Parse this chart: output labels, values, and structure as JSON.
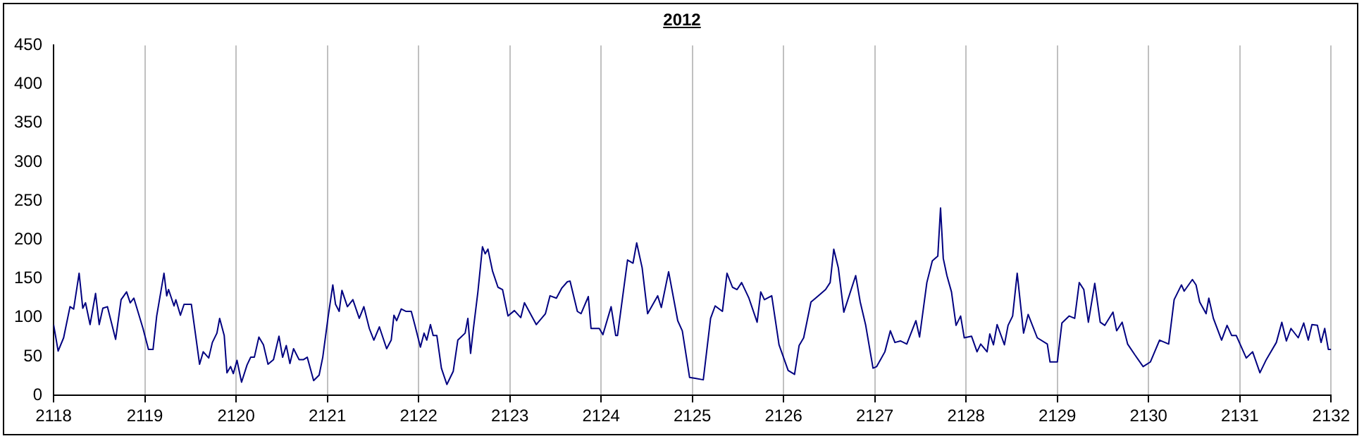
{
  "chart_data": {
    "type": "line",
    "title": "2012",
    "xlim": [
      2118,
      2132
    ],
    "xticks": [
      2118,
      2119,
      2120,
      2121,
      2122,
      2123,
      2124,
      2125,
      2126,
      2127,
      2128,
      2129,
      2130,
      2131,
      2132
    ],
    "ylim": [
      0,
      450
    ],
    "yticks": [
      0,
      50,
      100,
      150,
      200,
      250,
      300,
      350,
      400,
      450
    ],
    "grid": "x",
    "legend": false,
    "marker": "none",
    "line_style": "solid",
    "series": [
      {
        "color": "#000080",
        "x": [
          2118.0,
          2118.05,
          2118.11,
          2118.18,
          2118.22,
          2118.28,
          2118.32,
          2118.35,
          2118.4,
          2118.46,
          2118.5,
          2118.54,
          2118.59,
          2118.68,
          2118.74,
          2118.8,
          2118.84,
          2118.88,
          2118.98,
          2119.04,
          2119.09,
          2119.13,
          2119.21,
          2119.24,
          2119.26,
          2119.32,
          2119.34,
          2119.39,
          2119.43,
          2119.51,
          2119.55,
          2119.6,
          2119.64,
          2119.7,
          2119.74,
          2119.79,
          2119.82,
          2119.87,
          2119.9,
          2119.94,
          2119.97,
          2120.01,
          2120.06,
          2120.12,
          2120.16,
          2120.2,
          2120.25,
          2120.3,
          2120.35,
          2120.41,
          2120.47,
          2120.51,
          2120.55,
          2120.59,
          2120.63,
          2120.69,
          2120.74,
          2120.78,
          2120.85,
          2120.91,
          2120.95,
          2121.01,
          2121.06,
          2121.09,
          2121.13,
          2121.16,
          2121.22,
          2121.28,
          2121.35,
          2121.4,
          2121.46,
          2121.51,
          2121.57,
          2121.65,
          2121.7,
          2121.73,
          2121.76,
          2121.81,
          2121.86,
          2121.92,
          2121.96,
          2122.02,
          2122.06,
          2122.09,
          2122.13,
          2122.16,
          2122.2,
          2122.25,
          2122.31,
          2122.38,
          2122.43,
          2122.51,
          2122.54,
          2122.57,
          2122.6,
          2122.65,
          2122.7,
          2122.73,
          2122.76,
          2122.81,
          2122.87,
          2122.92,
          2122.98,
          2123.05,
          2123.12,
          2123.16,
          2123.29,
          2123.39,
          2123.44,
          2123.51,
          2123.57,
          2123.63,
          2123.66,
          2123.74,
          2123.78,
          2123.86,
          2123.89,
          2123.98,
          2124.02,
          2124.11,
          2124.16,
          2124.18,
          2124.29,
          2124.35,
          2124.39,
          2124.45,
          2124.51,
          2124.62,
          2124.66,
          2124.74,
          2124.84,
          2124.89,
          2124.97,
          2125.03,
          2125.12,
          2125.2,
          2125.25,
          2125.33,
          2125.38,
          2125.44,
          2125.49,
          2125.54,
          2125.62,
          2125.71,
          2125.75,
          2125.79,
          2125.87,
          2125.95,
          2126.05,
          2126.12,
          2126.17,
          2126.22,
          2126.3,
          2126.38,
          2126.46,
          2126.51,
          2126.55,
          2126.6,
          2126.66,
          2126.79,
          2126.84,
          2126.9,
          2126.98,
          2127.02,
          2127.11,
          2127.17,
          2127.22,
          2127.28,
          2127.35,
          2127.45,
          2127.49,
          2127.57,
          2127.63,
          2127.69,
          2127.72,
          2127.75,
          2127.79,
          2127.84,
          2127.89,
          2127.94,
          2127.98,
          2128.06,
          2128.12,
          2128.16,
          2128.23,
          2128.26,
          2128.3,
          2128.34,
          2128.42,
          2128.46,
          2128.51,
          2128.56,
          2128.63,
          2128.68,
          2128.78,
          2128.89,
          2128.92,
          2129.0,
          2129.05,
          2129.13,
          2129.19,
          2129.24,
          2129.29,
          2129.34,
          2129.41,
          2129.47,
          2129.52,
          2129.61,
          2129.65,
          2129.71,
          2129.77,
          2129.85,
          2129.94,
          2130.02,
          2130.12,
          2130.22,
          2130.28,
          2130.36,
          2130.39,
          2130.48,
          2130.52,
          2130.56,
          2130.63,
          2130.66,
          2130.71,
          2130.8,
          2130.86,
          2130.91,
          2130.96,
          2131.07,
          2131.14,
          2131.22,
          2131.29,
          2131.4,
          2131.46,
          2131.51,
          2131.56,
          2131.64,
          2131.7,
          2131.75,
          2131.79,
          2131.85,
          2131.89,
          2131.93,
          2131.97,
          2132.0
        ],
        "values": [
          91,
          57,
          74,
          114,
          111,
          157,
          112,
          119,
          91,
          131,
          91,
          112,
          114,
          72,
          123,
          133,
          119,
          125,
          86,
          59,
          59,
          102,
          157,
          128,
          136,
          115,
          123,
          103,
          117,
          117,
          83,
          40,
          56,
          48,
          68,
          80,
          99,
          77,
          29,
          37,
          28,
          45,
          17,
          39,
          49,
          49,
          75,
          65,
          40,
          46,
          76,
          49,
          64,
          41,
          60,
          46,
          46,
          49,
          19,
          26,
          49,
          102,
          142,
          117,
          108,
          135,
          114,
          123,
          99,
          114,
          86,
          71,
          88,
          60,
          71,
          103,
          96,
          111,
          108,
          108,
          90,
          62,
          80,
          71,
          91,
          77,
          77,
          35,
          14,
          31,
          71,
          80,
          99,
          54,
          85,
          133,
          191,
          182,
          188,
          160,
          139,
          136,
          102,
          109,
          100,
          119,
          91,
          105,
          128,
          125,
          138,
          146,
          147,
          108,
          105,
          127,
          86,
          86,
          78,
          114,
          77,
          77,
          174,
          170,
          196,
          164,
          105,
          128,
          113,
          159,
          96,
          83,
          23,
          22,
          20,
          99,
          115,
          108,
          157,
          139,
          136,
          145,
          125,
          94,
          133,
          123,
          128,
          65,
          32,
          27,
          64,
          74,
          120,
          128,
          136,
          145,
          188,
          164,
          107,
          154,
          120,
          90,
          35,
          37,
          56,
          83,
          68,
          70,
          66,
          96,
          75,
          145,
          173,
          179,
          241,
          176,
          154,
          133,
          90,
          102,
          74,
          76,
          56,
          66,
          56,
          79,
          65,
          91,
          65,
          90,
          102,
          157,
          80,
          104,
          74,
          66,
          43,
          43,
          93,
          102,
          99,
          145,
          136,
          94,
          144,
          94,
          90,
          107,
          83,
          94,
          66,
          52,
          37,
          43,
          71,
          66,
          123,
          142,
          134,
          149,
          142,
          120,
          105,
          125,
          99,
          71,
          90,
          77,
          77,
          48,
          56,
          29,
          46,
          68,
          94,
          70,
          86,
          74,
          93,
          71,
          91,
          90,
          68,
          86,
          59,
          59
        ]
      }
    ]
  }
}
